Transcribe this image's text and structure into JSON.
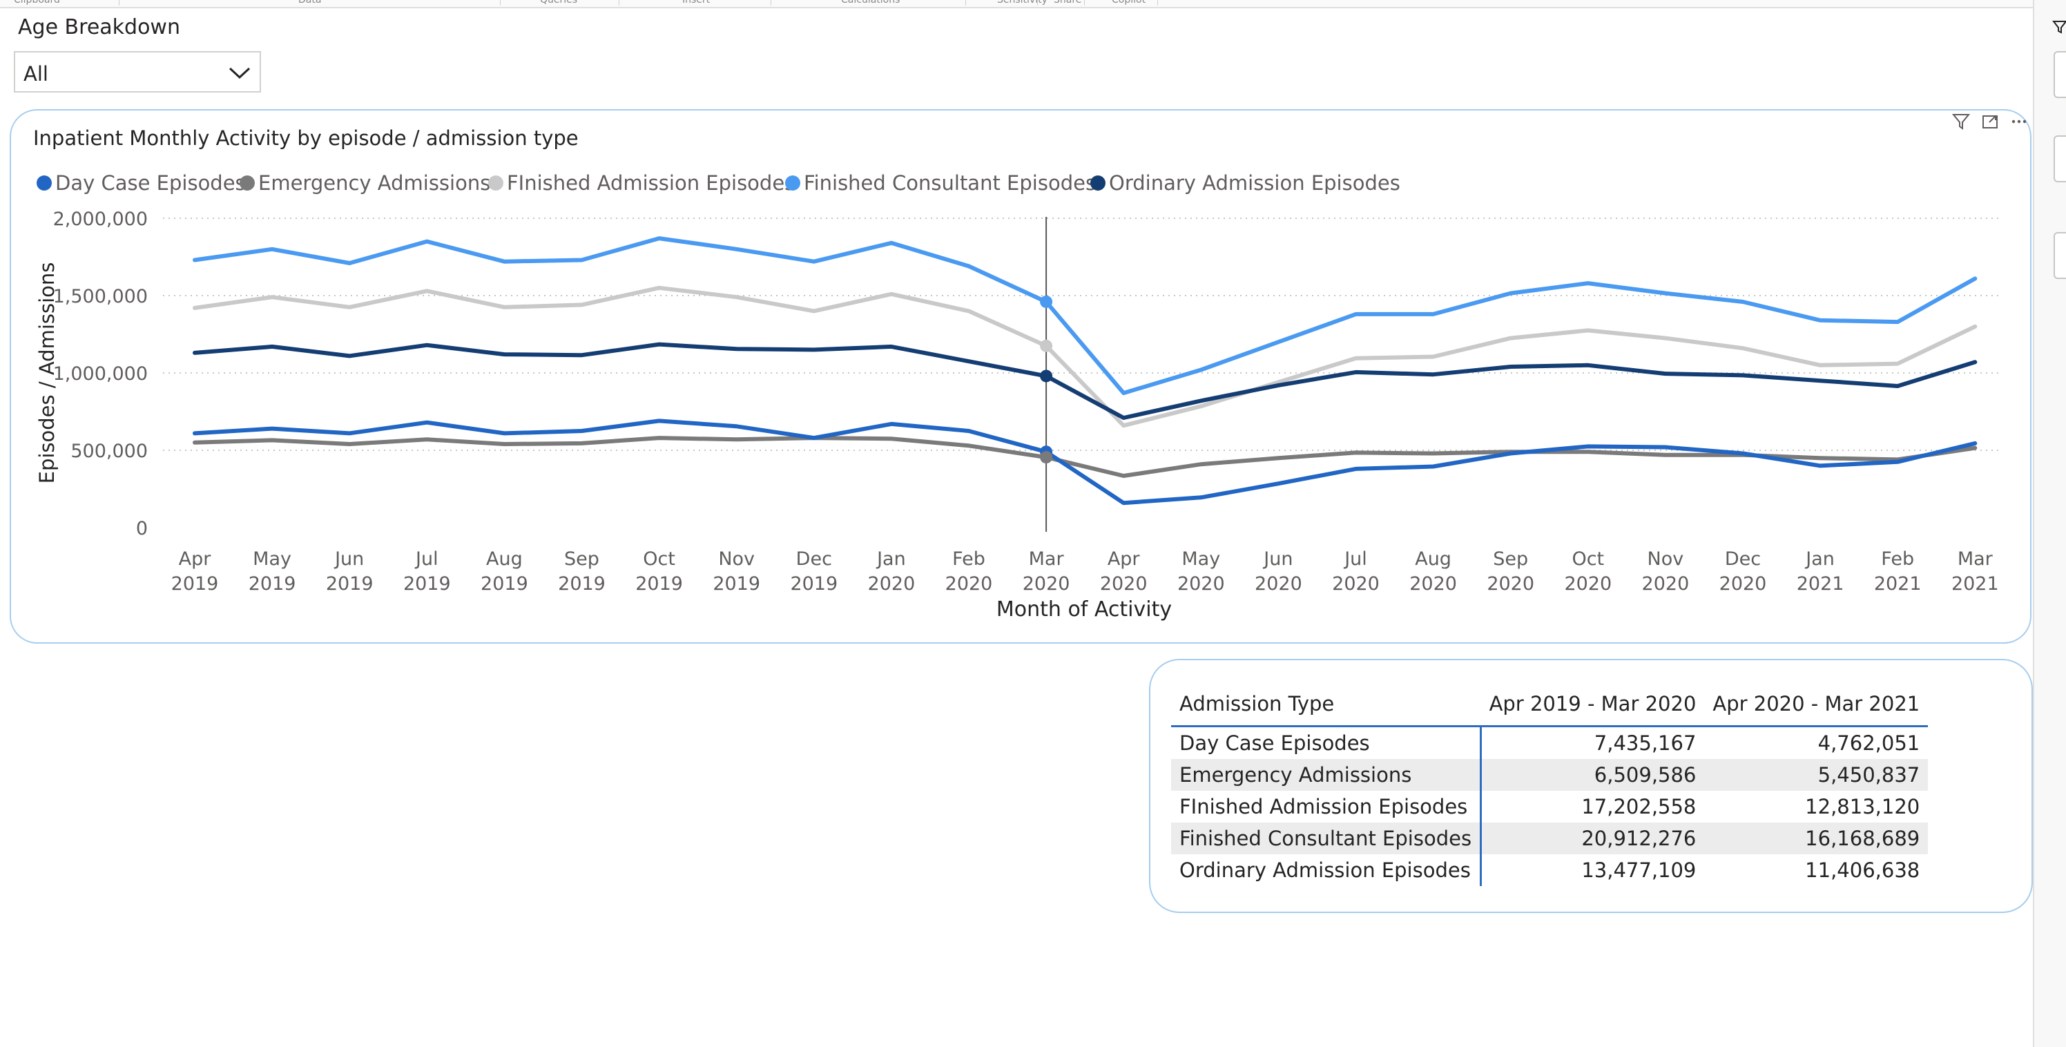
{
  "ribbon": {
    "groups": [
      {
        "label": "Clipboard"
      },
      {
        "label": "Data"
      },
      {
        "label": "Queries"
      },
      {
        "label": "Insert"
      },
      {
        "label": "Calculations"
      },
      {
        "label": "Sensitivity"
      },
      {
        "label": "Share"
      },
      {
        "label": "Copilot"
      }
    ]
  },
  "slicer": {
    "title": "Age Breakdown",
    "selected": "All"
  },
  "chart_data": {
    "type": "line",
    "title": "Inpatient Monthly Activity by episode / admission type",
    "xlabel": "Month of Activity",
    "ylabel": "Episodes / Admissions",
    "ylim": [
      0,
      2000000
    ],
    "yticks": [
      "0",
      "500,000",
      "1,000,000",
      "1,500,000",
      "2,000,000"
    ],
    "ytick_values": [
      0,
      500000,
      1000000,
      1500000,
      2000000
    ],
    "grid": true,
    "legend_position": "top-left",
    "categories": [
      [
        "Apr",
        "2019"
      ],
      [
        "May",
        "2019"
      ],
      [
        "Jun",
        "2019"
      ],
      [
        "Jul",
        "2019"
      ],
      [
        "Aug",
        "2019"
      ],
      [
        "Sep",
        "2019"
      ],
      [
        "Oct",
        "2019"
      ],
      [
        "Nov",
        "2019"
      ],
      [
        "Dec",
        "2019"
      ],
      [
        "Jan",
        "2020"
      ],
      [
        "Feb",
        "2020"
      ],
      [
        "Mar",
        "2020"
      ],
      [
        "Apr",
        "2020"
      ],
      [
        "May",
        "2020"
      ],
      [
        "Jun",
        "2020"
      ],
      [
        "Jul",
        "2020"
      ],
      [
        "Aug",
        "2020"
      ],
      [
        "Sep",
        "2020"
      ],
      [
        "Oct",
        "2020"
      ],
      [
        "Nov",
        "2020"
      ],
      [
        "Dec",
        "2020"
      ],
      [
        "Jan",
        "2021"
      ],
      [
        "Feb",
        "2021"
      ],
      [
        "Mar",
        "2021"
      ]
    ],
    "highlight_index": 11,
    "series": [
      {
        "name": "Day Case Episodes",
        "color": "#2166c4",
        "values": [
          610000,
          640000,
          610000,
          680000,
          610000,
          625000,
          690000,
          655000,
          580000,
          670000,
          625000,
          490000,
          160000,
          195000,
          285000,
          380000,
          395000,
          480000,
          525000,
          520000,
          480000,
          400000,
          425000,
          545000
        ]
      },
      {
        "name": "Emergency Admissions",
        "color": "#7a7a7a",
        "values": [
          550000,
          565000,
          540000,
          570000,
          540000,
          545000,
          580000,
          570000,
          580000,
          575000,
          530000,
          455000,
          335000,
          410000,
          450000,
          485000,
          480000,
          490000,
          490000,
          470000,
          470000,
          450000,
          440000,
          515000
        ]
      },
      {
        "name": "FInished Admission Episodes",
        "color": "#c9c9c9",
        "values": [
          1420000,
          1490000,
          1425000,
          1530000,
          1425000,
          1440000,
          1550000,
          1490000,
          1400000,
          1510000,
          1400000,
          1175000,
          660000,
          785000,
          940000,
          1095000,
          1105000,
          1225000,
          1275000,
          1225000,
          1160000,
          1050000,
          1060000,
          1300000
        ]
      },
      {
        "name": "Finished Consultant Episodes",
        "color": "#4a9af1",
        "values": [
          1730000,
          1800000,
          1710000,
          1850000,
          1720000,
          1730000,
          1870000,
          1800000,
          1720000,
          1840000,
          1690000,
          1460000,
          870000,
          1020000,
          1200000,
          1380000,
          1380000,
          1515000,
          1580000,
          1515000,
          1460000,
          1340000,
          1330000,
          1610000
        ]
      },
      {
        "name": "Ordinary Admission Episodes",
        "color": "#143d73",
        "values": [
          1130000,
          1170000,
          1110000,
          1180000,
          1120000,
          1115000,
          1185000,
          1155000,
          1150000,
          1170000,
          1075000,
          980000,
          710000,
          820000,
          920000,
          1005000,
          990000,
          1040000,
          1050000,
          995000,
          985000,
          950000,
          915000,
          1070000
        ]
      }
    ]
  },
  "table": {
    "headers": [
      "Admission Type",
      "Apr 2019 - Mar 2020",
      "Apr 2020 - Mar 2021"
    ],
    "rows": [
      [
        "Day Case Episodes",
        "7,435,167",
        "4,762,051"
      ],
      [
        "Emergency Admissions",
        "6,509,586",
        "5,450,837"
      ],
      [
        "FInished Admission Episodes",
        "17,202,558",
        "12,813,120"
      ],
      [
        "Finished Consultant Episodes",
        "20,912,276",
        "16,168,689"
      ],
      [
        "Ordinary Admission Episodes",
        "13,477,109",
        "11,406,638"
      ]
    ]
  },
  "icons": {
    "filter": "filter-icon",
    "focus": "focus-mode-icon",
    "more": "more-options-icon",
    "dropdown": "chevron-down-icon"
  }
}
